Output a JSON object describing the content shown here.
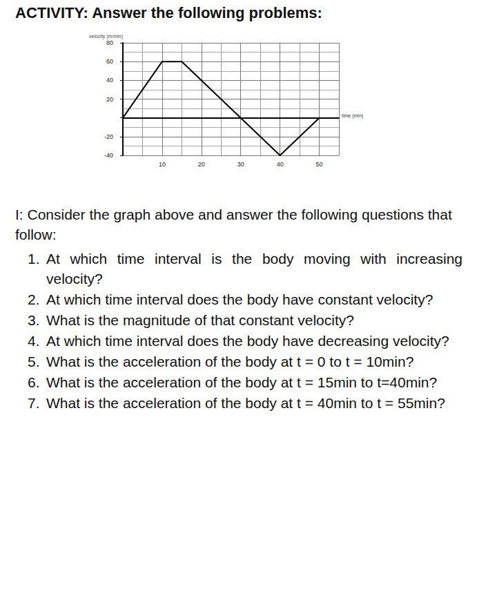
{
  "heading": "ACTIVITY: Answer the following problems:",
  "chart_data": {
    "type": "line",
    "x_label": "time (min)",
    "y_label": "velocity (m/min)",
    "x": [
      0,
      10,
      15,
      30,
      40,
      50
    ],
    "values": [
      0,
      60,
      60,
      0,
      -40,
      0
    ],
    "color": "#000000",
    "xlim": [
      0,
      55
    ],
    "ylim": [
      -40,
      80
    ],
    "xticks": [
      10,
      20,
      30,
      40,
      50
    ],
    "yticks": [
      -40,
      -20,
      20,
      40,
      60,
      80
    ],
    "grid": true
  },
  "instructions": "I: Consider the graph above and answer the following questions that follow:",
  "questions": [
    {
      "number": "1.",
      "text": "At which time interval is the body moving with increasing velocity?"
    },
    {
      "number": "2.",
      "text": "At which time interval does the body have constant velocity?"
    },
    {
      "number": "3.",
      "text": "What is the magnitude of that constant velocity?"
    },
    {
      "number": "4.",
      "text": "At which time interval does the body have decreasing velocity?"
    },
    {
      "number": "5.",
      "text": "What is the acceleration of the body at t = 0 to t = 10min?"
    },
    {
      "number": "6.",
      "text": "What is the acceleration of the body at t = 15min to t=40min?"
    },
    {
      "number": "7.",
      "text": "What is the acceleration of the body at t = 40min to t = 55min?"
    }
  ]
}
